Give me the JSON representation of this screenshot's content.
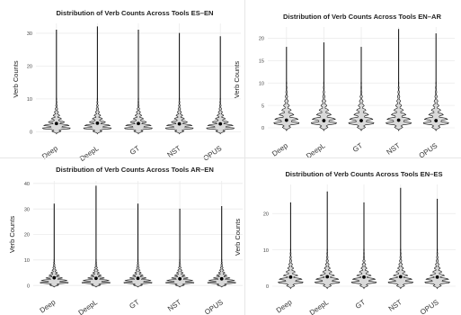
{
  "chart_data": [
    {
      "type": "violin",
      "title": "Distribution of Verb Counts Across Tools ES–EN",
      "xlabel": "",
      "ylabel": "Verb Counts",
      "categories": [
        "Deep",
        "DeepL",
        "GT",
        "NST",
        "OPUS"
      ],
      "ylim": [
        -1,
        33
      ],
      "yticks": [
        0,
        10,
        20,
        30
      ],
      "max": [
        31,
        32,
        31,
        30,
        29
      ],
      "mean": [
        2.5,
        2.6,
        2.5,
        2.4,
        2.4
      ],
      "grid": true,
      "legend": "none"
    },
    {
      "type": "violin",
      "title": "Distribution of Verb Counts Across Tools EN–AR",
      "xlabel": "",
      "ylabel": "Verb Counts",
      "categories": [
        "Deep",
        "DeepL",
        "GT",
        "NST",
        "OPUS"
      ],
      "ylim": [
        -1,
        22.5
      ],
      "yticks": [
        0,
        5,
        10,
        15,
        20
      ],
      "max": [
        18,
        19,
        18,
        22,
        21
      ],
      "mean": [
        1.7,
        1.6,
        1.6,
        1.7,
        1.6
      ],
      "grid": true,
      "legend": "none"
    },
    {
      "type": "violin",
      "title": "Distribution of Verb Counts Across Tools AR–EN",
      "xlabel": "",
      "ylabel": "Verb Counts",
      "categories": [
        "Deep",
        "DeepL",
        "GT",
        "NST",
        "OPUS"
      ],
      "ylim": [
        -1,
        41
      ],
      "yticks": [
        0,
        10,
        20,
        30,
        40
      ],
      "max": [
        32,
        39,
        32,
        30,
        31
      ],
      "mean": [
        3.0,
        2.8,
        2.8,
        2.6,
        2.6
      ],
      "grid": true,
      "legend": "none"
    },
    {
      "type": "violin",
      "title": "Distribution of Verb Counts Across Tools EN–ES",
      "xlabel": "",
      "ylabel": "Verb Counts",
      "categories": [
        "Deep",
        "DeepL",
        "GT",
        "NST",
        "OPUS"
      ],
      "ylim": [
        -1,
        28
      ],
      "yticks": [
        0,
        10,
        20
      ],
      "max": [
        23,
        26,
        23,
        27,
        24
      ],
      "mean": [
        2.5,
        2.6,
        2.5,
        2.6,
        2.5
      ],
      "grid": true,
      "legend": "none"
    }
  ],
  "colors": {
    "violin_fill": "#d9d9d9",
    "violin_stroke": "#111111",
    "grid": "#ebebeb",
    "mean_point": "#000000",
    "text": "#222222"
  }
}
